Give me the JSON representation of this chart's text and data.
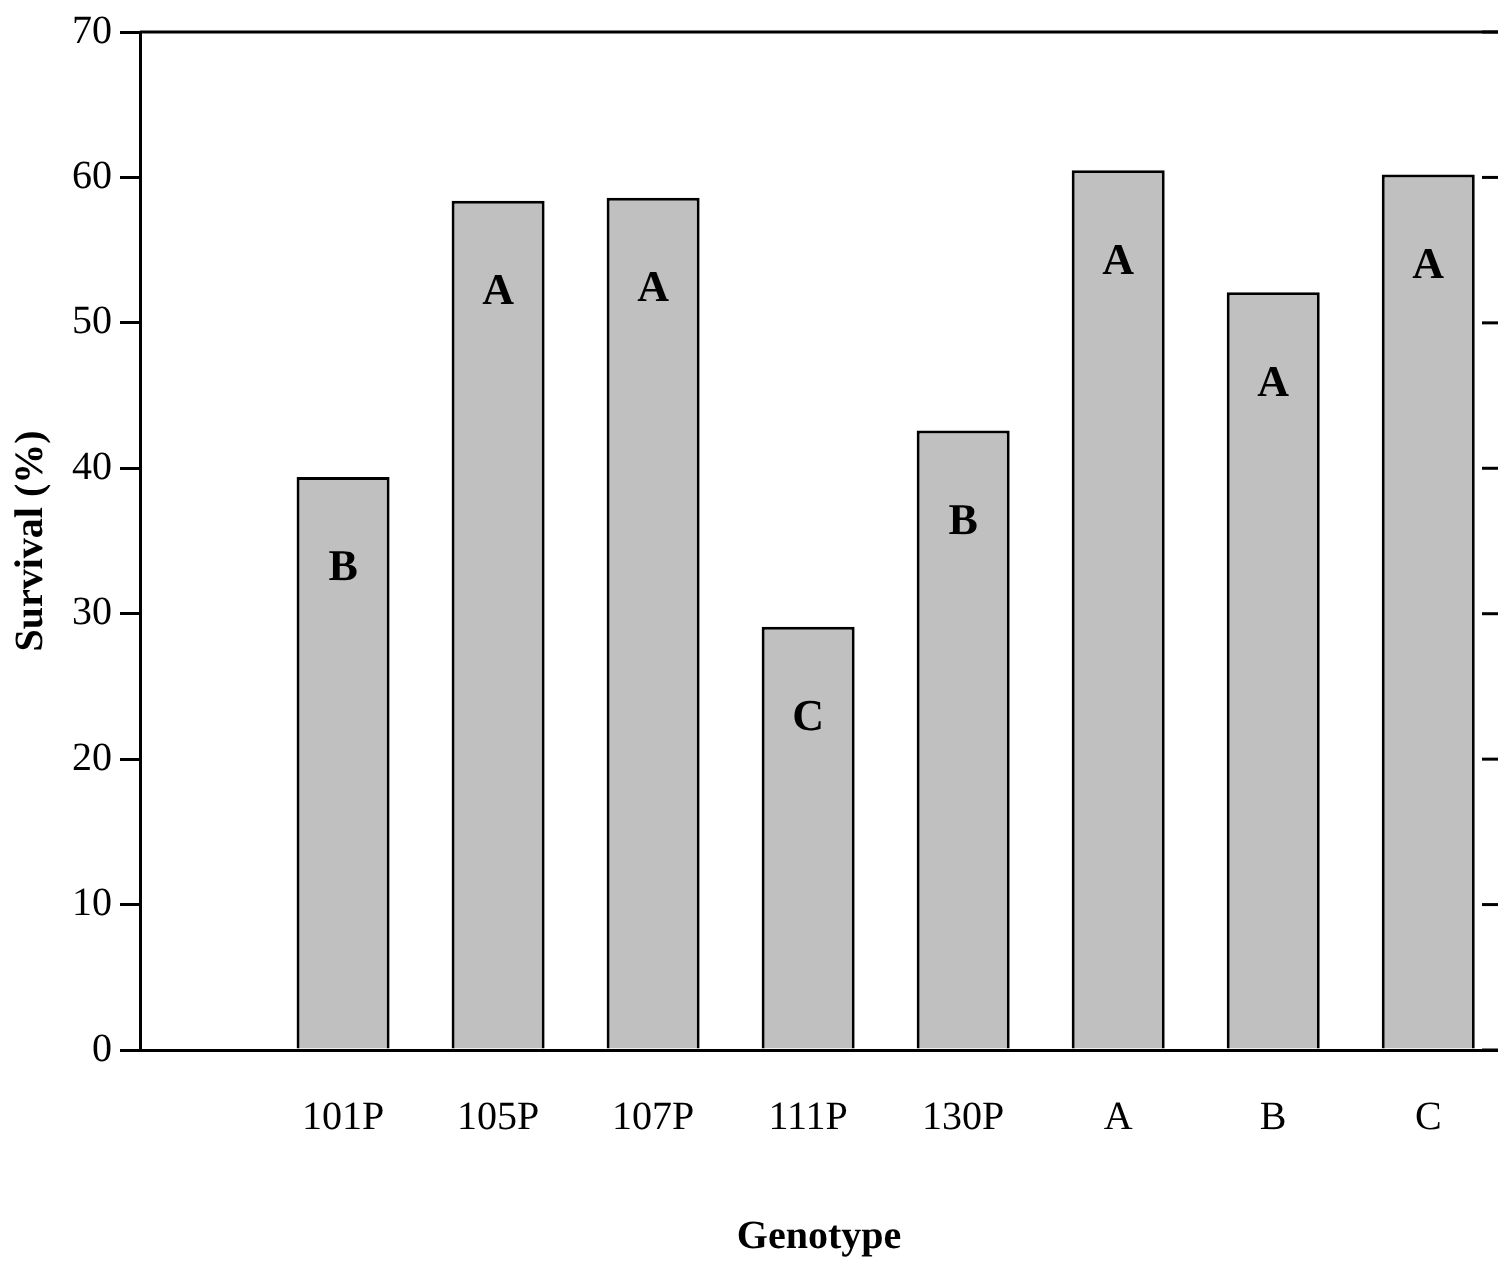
{
  "chart_data": {
    "type": "bar",
    "xlabel": "Genotype",
    "ylabel": "Survival (%)",
    "categories": [
      "101P",
      "105P",
      "107P",
      "111P",
      "130P",
      "A",
      "B",
      "C"
    ],
    "values": [
      39.4,
      58.4,
      58.6,
      29.1,
      42.6,
      60.5,
      52.1,
      60.2
    ],
    "color": "#c0c0c0",
    "ylim": [
      0,
      70
    ],
    "yticks": [
      0,
      10,
      20,
      30,
      40,
      50,
      60,
      70
    ],
    "grid": false,
    "legend": false,
    "annotations": [
      "B",
      "A",
      "A",
      "C",
      "B",
      "A",
      "A",
      "A"
    ]
  }
}
